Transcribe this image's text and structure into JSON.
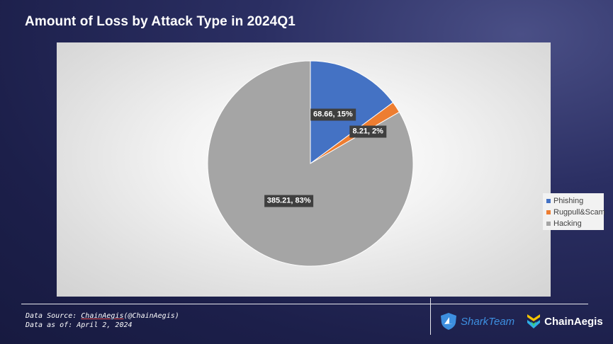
{
  "title": "Amount of Loss by Attack Type in 2024Q1",
  "chart_data": {
    "type": "pie",
    "title": "Amount of Loss by Attack Type in 2024Q1",
    "slices": [
      {
        "name": "Phishing",
        "value": 68.66,
        "percent": 15,
        "label": "68.66, 15%",
        "color": "#4472c4"
      },
      {
        "name": "Rugpull&Scam",
        "value": 8.21,
        "percent": 2,
        "label": "8.21, 2%",
        "color": "#ed7d31"
      },
      {
        "name": "Hacking",
        "value": 385.21,
        "percent": 83,
        "label": "385.21, 83%",
        "color": "#a5a5a5"
      }
    ],
    "start_angle_deg": 0,
    "direction": "clockwise",
    "legend_position": "right"
  },
  "footer": {
    "source_prefix": "Data Source: ",
    "source_link": "ChainAegis",
    "source_suffix": "(@ChainAegis)",
    "data_as_of": "Data as of: April 2, 2024"
  },
  "logos": {
    "sharkteam": "SharkTeam",
    "chainaegis": "ChainAegis",
    "sharkteam_icon": "shark-shield-icon",
    "chainaegis_icon": "chainaegis-logo-icon"
  }
}
